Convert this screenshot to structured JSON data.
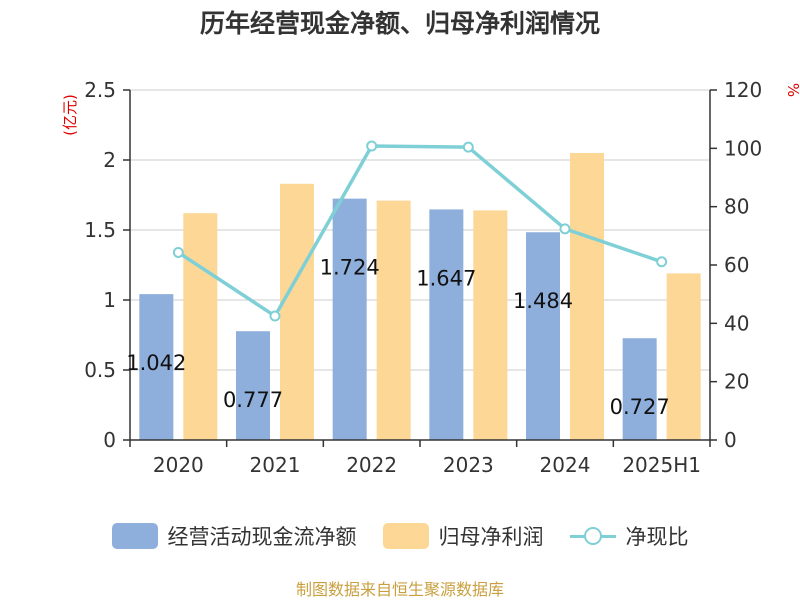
{
  "chart_data": {
    "type": "bar",
    "title": "历年经营现金净额、归母净利润情况",
    "categories": [
      "2020",
      "2021",
      "2022",
      "2023",
      "2024",
      "2025H1"
    ],
    "left_axis": {
      "unit_label": "(亿元)",
      "ylim": [
        0,
        2.5
      ],
      "ticks": [
        "0",
        "0.5",
        "1",
        "1.5",
        "2",
        "2.5"
      ]
    },
    "right_axis": {
      "unit_label": "%",
      "ylim": [
        0,
        120
      ],
      "ticks": [
        "0",
        "20",
        "40",
        "60",
        "80",
        "100",
        "120"
      ]
    },
    "grid": true,
    "legend_position": "bottom",
    "series": [
      {
        "name": "经营活动现金流净额",
        "type": "bar",
        "axis": "left",
        "color": "#8eaedb",
        "values": [
          1.042,
          0.777,
          1.724,
          1.647,
          1.484,
          0.727
        ],
        "labels": [
          "1.042",
          "0.777",
          "1.724",
          "1.647",
          "1.484",
          "0.727"
        ]
      },
      {
        "name": "归母净利润",
        "type": "bar",
        "axis": "left",
        "color": "#fdd796",
        "values": [
          1.62,
          1.83,
          1.71,
          1.64,
          2.05,
          1.19
        ]
      },
      {
        "name": "净现比",
        "type": "line",
        "axis": "right",
        "color": "#7fd0d6",
        "values": [
          64.3,
          42.5,
          100.8,
          100.4,
          72.4,
          61.1
        ]
      }
    ]
  },
  "source_note": "制图数据来自恒生聚源数据库"
}
